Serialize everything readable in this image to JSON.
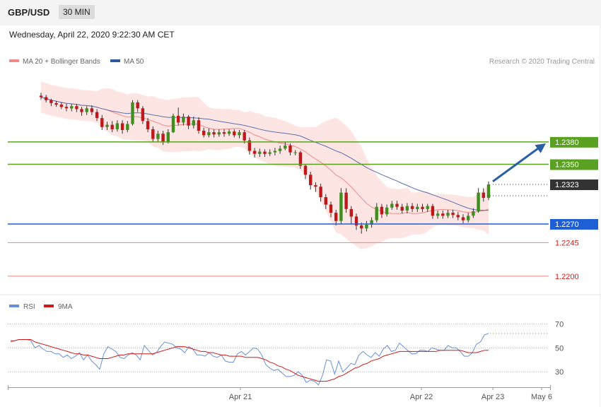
{
  "header": {
    "symbol": "GBP/USD",
    "interval": "30 MIN"
  },
  "timestamp": "Wednesday, April 22, 2020 9:22:30 AM CET",
  "legend": [
    {
      "name": "MA 20 + Bollinger Bands",
      "color": "#f08a8a"
    },
    {
      "name": "MA 50",
      "color": "#2d5a9c"
    }
  ],
  "credit": "Research © 2020 Trading Central",
  "colors": {
    "up": "#3f8f1e",
    "down": "#c0181a",
    "band": "#fde0df",
    "ma20": "#f08a8a",
    "ma50": "#5b6fae",
    "resistance": "#5aa021",
    "pivot": "#1f5fd6",
    "support": "#f08080",
    "arrow": "#2b5fa5",
    "last": "#333333"
  },
  "chart_data": [
    {
      "type": "candlestick",
      "ylim": [
        1.218,
        1.2485
      ],
      "levels": [
        {
          "label": "1.2380",
          "value": 1.238,
          "kind": "resistance"
        },
        {
          "label": "1.2350",
          "value": 1.235,
          "kind": "resistance"
        },
        {
          "label": "1.2323",
          "value": 1.2323,
          "kind": "last"
        },
        {
          "label": "1.2270",
          "value": 1.227,
          "kind": "pivot"
        },
        {
          "label": "1.2245",
          "value": 1.2245,
          "kind": "support"
        },
        {
          "label": "1.2200",
          "value": 1.22,
          "kind": "support"
        }
      ],
      "x_ticks": [
        "Apr 21",
        "Apr 22",
        "Apr 23",
        "May 6"
      ],
      "projection": {
        "from": 1.2327,
        "to": 1.238
      },
      "candles": [
        [
          1.2442,
          1.244,
          1.2446,
          1.2437
        ],
        [
          1.244,
          1.2436,
          1.2443,
          1.2433
        ],
        [
          1.2436,
          1.2432,
          1.2438,
          1.2428
        ],
        [
          1.2432,
          1.243,
          1.2435,
          1.2427
        ],
        [
          1.243,
          1.2427,
          1.2433,
          1.2424
        ],
        [
          1.2427,
          1.2425,
          1.2431,
          1.2421
        ],
        [
          1.2425,
          1.2428,
          1.2431,
          1.2421
        ],
        [
          1.2428,
          1.2424,
          1.2431,
          1.242
        ],
        [
          1.2424,
          1.242,
          1.2427,
          1.2415
        ],
        [
          1.242,
          1.2425,
          1.2428,
          1.2416
        ],
        [
          1.2425,
          1.242,
          1.2429,
          1.2416
        ],
        [
          1.242,
          1.2412,
          1.2424,
          1.2408
        ],
        [
          1.2412,
          1.24,
          1.2416,
          1.2396
        ],
        [
          1.24,
          1.2403,
          1.2407,
          1.2396
        ],
        [
          1.2403,
          1.2397,
          1.2408,
          1.2393
        ],
        [
          1.2397,
          1.2405,
          1.2409,
          1.2394
        ],
        [
          1.2405,
          1.2396,
          1.2409,
          1.2391
        ],
        [
          1.2396,
          1.2404,
          1.2408,
          1.2393
        ],
        [
          1.2404,
          1.2433,
          1.2436,
          1.2402
        ],
        [
          1.2433,
          1.2425,
          1.2436,
          1.242
        ],
        [
          1.2425,
          1.2408,
          1.2428,
          1.2404
        ],
        [
          1.2408,
          1.2397,
          1.2412,
          1.2393
        ],
        [
          1.2397,
          1.2384,
          1.2401,
          1.238
        ],
        [
          1.2384,
          1.2391,
          1.2395,
          1.238
        ],
        [
          1.2391,
          1.238,
          1.2395,
          1.2376
        ],
        [
          1.238,
          1.2393,
          1.2397,
          1.2378
        ],
        [
          1.2393,
          1.2415,
          1.2418,
          1.2392
        ],
        [
          1.2415,
          1.2406,
          1.2426,
          1.2402
        ],
        [
          1.2406,
          1.2414,
          1.2418,
          1.2402
        ],
        [
          1.2414,
          1.2402,
          1.2416,
          1.2397
        ],
        [
          1.2402,
          1.2409,
          1.2414,
          1.2398
        ],
        [
          1.2409,
          1.2395,
          1.2413,
          1.2391
        ],
        [
          1.2395,
          1.2389,
          1.2399,
          1.2386
        ],
        [
          1.2389,
          1.2393,
          1.2398,
          1.2386
        ],
        [
          1.2393,
          1.239,
          1.2397,
          1.2386
        ],
        [
          1.239,
          1.2393,
          1.2397,
          1.2387
        ],
        [
          1.2393,
          1.2391,
          1.2397,
          1.2387
        ],
        [
          1.2391,
          1.2394,
          1.2397,
          1.2388
        ],
        [
          1.2394,
          1.2389,
          1.2397,
          1.2386
        ],
        [
          1.2389,
          1.2393,
          1.2396,
          1.2385
        ],
        [
          1.2393,
          1.2382,
          1.2396,
          1.2378
        ],
        [
          1.2382,
          1.2368,
          1.2386,
          1.2363
        ],
        [
          1.2368,
          1.2364,
          1.2372,
          1.2359
        ],
        [
          1.2364,
          1.2367,
          1.2371,
          1.236
        ],
        [
          1.2367,
          1.2364,
          1.237,
          1.236
        ],
        [
          1.2364,
          1.2366,
          1.237,
          1.2361
        ],
        [
          1.2366,
          1.2368,
          1.2372,
          1.2362
        ],
        [
          1.2368,
          1.2371,
          1.2375,
          1.2364
        ],
        [
          1.2371,
          1.2375,
          1.238,
          1.2369
        ],
        [
          1.2375,
          1.2366,
          1.2378,
          1.2362
        ],
        [
          1.2366,
          1.2366,
          1.2369,
          1.2362
        ],
        [
          1.2366,
          1.2348,
          1.2368,
          1.2344
        ],
        [
          1.2348,
          1.2336,
          1.235,
          1.233
        ],
        [
          1.2336,
          1.2322,
          1.234,
          1.2316
        ],
        [
          1.2322,
          1.232,
          1.2326,
          1.2313
        ],
        [
          1.232,
          1.2306,
          1.2324,
          1.23
        ],
        [
          1.2306,
          1.2296,
          1.231,
          1.229
        ],
        [
          1.2296,
          1.2285,
          1.23,
          1.2279
        ],
        [
          1.2285,
          1.2274,
          1.2289,
          1.2268
        ],
        [
          1.2274,
          1.2312,
          1.2318,
          1.227
        ],
        [
          1.2312,
          1.229,
          1.2318,
          1.2285
        ],
        [
          1.229,
          1.228,
          1.2294,
          1.227
        ],
        [
          1.228,
          1.2268,
          1.2284,
          1.2262
        ],
        [
          1.2268,
          1.2264,
          1.2272,
          1.2257
        ],
        [
          1.2264,
          1.2269,
          1.2274,
          1.226
        ],
        [
          1.2269,
          1.2275,
          1.2279,
          1.2265
        ],
        [
          1.2275,
          1.2293,
          1.2298,
          1.2272
        ],
        [
          1.2293,
          1.2283,
          1.2297,
          1.2278
        ],
        [
          1.2283,
          1.2292,
          1.2296,
          1.228
        ],
        [
          1.2292,
          1.2297,
          1.2301,
          1.2289
        ],
        [
          1.2297,
          1.2293,
          1.2301,
          1.2289
        ],
        [
          1.2293,
          1.2288,
          1.2297,
          1.2284
        ],
        [
          1.2288,
          1.2294,
          1.2298,
          1.2284
        ],
        [
          1.2294,
          1.229,
          1.2298,
          1.2286
        ],
        [
          1.229,
          1.2293,
          1.2297,
          1.2286
        ],
        [
          1.2293,
          1.229,
          1.2297,
          1.2286
        ],
        [
          1.229,
          1.2294,
          1.2297,
          1.2286
        ],
        [
          1.2294,
          1.2281,
          1.2297,
          1.2277
        ],
        [
          1.2281,
          1.2284,
          1.2288,
          1.2277
        ],
        [
          1.2284,
          1.2281,
          1.2288,
          1.2277
        ],
        [
          1.2281,
          1.2285,
          1.2289,
          1.2278
        ],
        [
          1.2285,
          1.2282,
          1.2289,
          1.2278
        ],
        [
          1.2282,
          1.2279,
          1.2286,
          1.2275
        ],
        [
          1.2279,
          1.2275,
          1.2283,
          1.2271
        ],
        [
          1.2275,
          1.2281,
          1.2285,
          1.2272
        ],
        [
          1.2281,
          1.2287,
          1.2291,
          1.2278
        ],
        [
          1.2287,
          1.2312,
          1.2318,
          1.2285
        ],
        [
          1.2312,
          1.2305,
          1.2318,
          1.23
        ],
        [
          1.2305,
          1.2323,
          1.2327,
          1.2302
        ]
      ]
    },
    {
      "type": "line",
      "title": "RSI",
      "ylim": [
        20,
        78
      ],
      "y_ticks": [
        30,
        50,
        70
      ],
      "series": [
        {
          "name": "RSI",
          "values": [
            55,
            56,
            57,
            57,
            57,
            56,
            50,
            52,
            49,
            47,
            47,
            45,
            45,
            42,
            44,
            41,
            43,
            46,
            40,
            44,
            39,
            36,
            32,
            45,
            51,
            49,
            47,
            42,
            41,
            44,
            46,
            44,
            40,
            52,
            48,
            44,
            46,
            51,
            55,
            54,
            53,
            50,
            49,
            46,
            51,
            49,
            44,
            44,
            43,
            46,
            43,
            42,
            44,
            39,
            38,
            38,
            45,
            47,
            44,
            47,
            50,
            49,
            44,
            36,
            33,
            31,
            32,
            29,
            26,
            26,
            27,
            30,
            27,
            21,
            23,
            22,
            19,
            27,
            40,
            39,
            28,
            39,
            30,
            33,
            37,
            36,
            44,
            47,
            44,
            42,
            46,
            43,
            49,
            52,
            47,
            48,
            54,
            51,
            48,
            45,
            45,
            48,
            48,
            47,
            50,
            49,
            48,
            48,
            52,
            50,
            50,
            47,
            43,
            43,
            46,
            53,
            55,
            61,
            62
          ]
        },
        {
          "name": "9MA",
          "values": [
            56,
            56,
            57,
            57,
            57,
            57,
            55,
            54,
            53,
            52,
            51,
            50,
            49,
            48,
            47,
            46,
            45,
            45,
            44,
            44,
            43,
            42,
            41,
            41,
            41,
            42,
            43,
            44,
            44,
            45,
            45,
            45,
            45,
            45,
            45,
            45,
            46,
            47,
            48,
            49,
            50,
            51,
            51,
            51,
            50,
            49,
            48,
            47,
            47,
            46,
            46,
            45,
            44,
            44,
            43,
            43,
            43,
            43,
            42,
            42,
            42,
            42,
            41,
            40,
            38,
            37,
            35,
            34,
            32,
            31,
            29,
            27,
            26,
            25,
            24,
            23,
            22,
            22,
            22,
            23,
            24,
            26,
            27,
            29,
            31,
            33,
            34,
            36,
            37,
            39,
            40,
            41,
            43,
            44,
            45,
            46,
            47,
            47,
            47,
            47,
            47,
            47,
            47,
            47,
            47,
            47,
            48,
            48,
            48,
            48,
            48,
            48,
            47,
            46,
            46,
            46,
            47,
            48,
            48
          ]
        }
      ]
    }
  ]
}
